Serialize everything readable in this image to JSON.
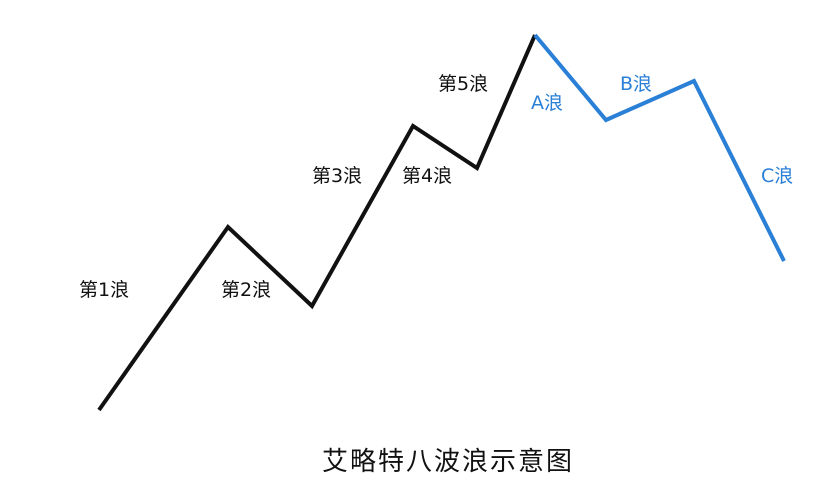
{
  "title": "艾略特八波浪示意图",
  "colors": {
    "impulse": "#111111",
    "corrective": "#2a7fd6",
    "background": "#ffffff"
  },
  "labels": {
    "wave1": "第1浪",
    "wave2": "第2浪",
    "wave3": "第3浪",
    "wave4": "第4浪",
    "wave5": "第5浪",
    "waveA": "A浪",
    "waveB": "B浪",
    "waveC": "C浪"
  }
}
